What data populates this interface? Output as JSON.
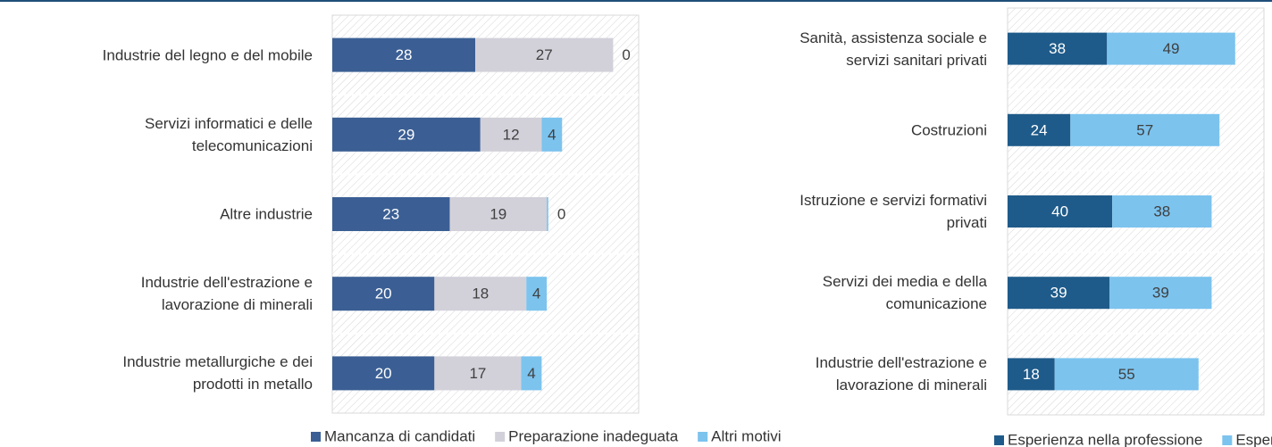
{
  "chart_data": [
    {
      "type": "stacked-bar-horizontal",
      "categories": [
        "Industrie del legno e del mobile",
        "Servizi informatici e delle\ntelecomunicazioni",
        "Altre industrie",
        "Industrie dell'estrazione e\nlavorazione di minerali",
        "Industrie metallurgiche e dei\nprodotti in metallo"
      ],
      "series": [
        {
          "name": "Mancanza di candidati",
          "color": "#3b5f94",
          "values": [
            28,
            29,
            23,
            20,
            20
          ]
        },
        {
          "name": "Preparazione inadeguata",
          "color": "#d2d1da",
          "values": [
            27,
            12,
            19,
            18,
            17
          ]
        },
        {
          "name": "Altri motivi",
          "color": "#7cc3ee",
          "values": [
            0,
            4,
            0.3,
            4,
            4
          ],
          "value_labels": [
            "0",
            "4",
            "0",
            "4",
            "4"
          ]
        }
      ],
      "xlim": [
        0,
        60
      ],
      "legend": "bottom"
    },
    {
      "type": "stacked-bar-horizontal",
      "categories": [
        "Sanità, assistenza sociale e\nservizi sanitari privati",
        "Costruzioni",
        "Istruzione e servizi formativi\nprivati",
        "Servizi dei media e della\ncomunicazione",
        "Industrie dell'estrazione e\nlavorazione di minerali"
      ],
      "series": [
        {
          "name": "Esperienza nella professione",
          "color": "#1f5b8a",
          "values": [
            38,
            24,
            40,
            39,
            18
          ]
        },
        {
          "name": "Esperienza nel settore",
          "color": "#7cc3ee",
          "values": [
            49,
            57,
            38,
            39,
            55
          ]
        }
      ],
      "xlim": [
        0,
        98
      ],
      "legend": "bottom"
    }
  ]
}
